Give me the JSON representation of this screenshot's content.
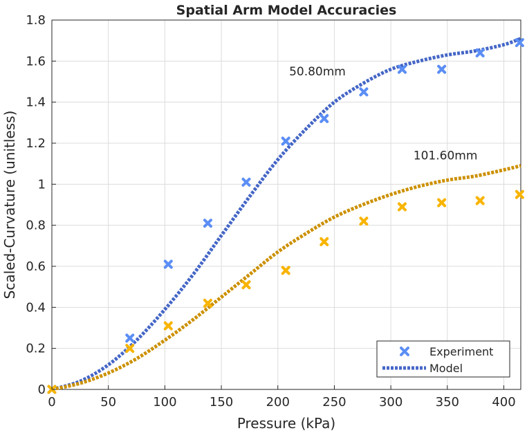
{
  "chart_data": {
    "type": "line",
    "title": "Spatial Arm Model Accuracies",
    "xlabel": "Pressure (kPa)",
    "ylabel": "Scaled-Curvature (unitless)",
    "xlim": [
      0,
      415
    ],
    "ylim": [
      0,
      1.8
    ],
    "xticks": [
      "0",
      "50",
      "100",
      "150",
      "200",
      "250",
      "300",
      "350",
      "400"
    ],
    "yticks": [
      "0",
      "0.2",
      "0.4",
      "0.6",
      "0.8",
      "1",
      "1.2",
      "1.4",
      "1.6",
      "1.8"
    ],
    "grid": true,
    "legend": {
      "position": "bottom-right",
      "entries": [
        "Experiment",
        "Model"
      ]
    },
    "annotations": [
      {
        "text": "50.80mm",
        "x": 210,
        "y": 1.53
      },
      {
        "text": "101.60mm",
        "x": 320,
        "y": 1.12
      }
    ],
    "series": [
      {
        "group": "50.80mm",
        "kind": "Experiment",
        "color": "#5b8ef5",
        "x": [
          0,
          69,
          103,
          138,
          172,
          207,
          241,
          276,
          310,
          345,
          379,
          414
        ],
        "y": [
          0,
          0.25,
          0.61,
          0.81,
          1.01,
          1.21,
          1.32,
          1.45,
          1.56,
          1.56,
          1.64,
          1.69
        ]
      },
      {
        "group": "50.80mm",
        "kind": "Model",
        "color": "#4466c6",
        "x": [
          0,
          25,
          50,
          75,
          100,
          125,
          150,
          175,
          200,
          225,
          250,
          275,
          300,
          325,
          350,
          375,
          400,
          415
        ],
        "y": [
          0,
          0.04,
          0.12,
          0.24,
          0.39,
          0.56,
          0.75,
          0.94,
          1.12,
          1.27,
          1.4,
          1.49,
          1.56,
          1.6,
          1.63,
          1.65,
          1.68,
          1.71
        ]
      },
      {
        "group": "101.60mm",
        "kind": "Experiment",
        "color": "#f8b400",
        "x": [
          0,
          69,
          103,
          138,
          172,
          207,
          241,
          276,
          310,
          345,
          379,
          414
        ],
        "y": [
          0,
          0.2,
          0.31,
          0.42,
          0.51,
          0.58,
          0.72,
          0.82,
          0.89,
          0.91,
          0.92,
          0.95
        ]
      },
      {
        "group": "101.60mm",
        "kind": "Model",
        "color": "#cc9000",
        "x": [
          0,
          25,
          50,
          75,
          100,
          125,
          150,
          175,
          200,
          225,
          250,
          275,
          300,
          325,
          350,
          375,
          400,
          415
        ],
        "y": [
          0,
          0.03,
          0.08,
          0.15,
          0.24,
          0.34,
          0.45,
          0.56,
          0.67,
          0.76,
          0.84,
          0.9,
          0.95,
          0.99,
          1.02,
          1.04,
          1.07,
          1.09
        ]
      }
    ]
  }
}
